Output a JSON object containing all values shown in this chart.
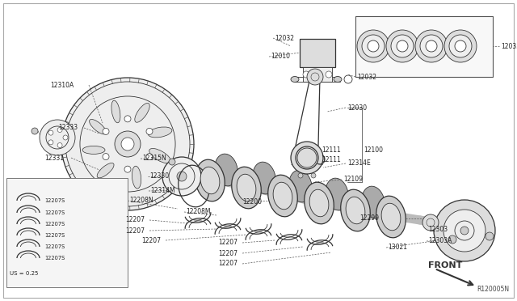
{
  "bg_color": "#ffffff",
  "lc": "#333333",
  "ref_code": "R120005N",
  "us_label": "US = 0.25",
  "front_label": "FRONT",
  "figsize": [
    6.4,
    3.72
  ],
  "dpi": 100
}
